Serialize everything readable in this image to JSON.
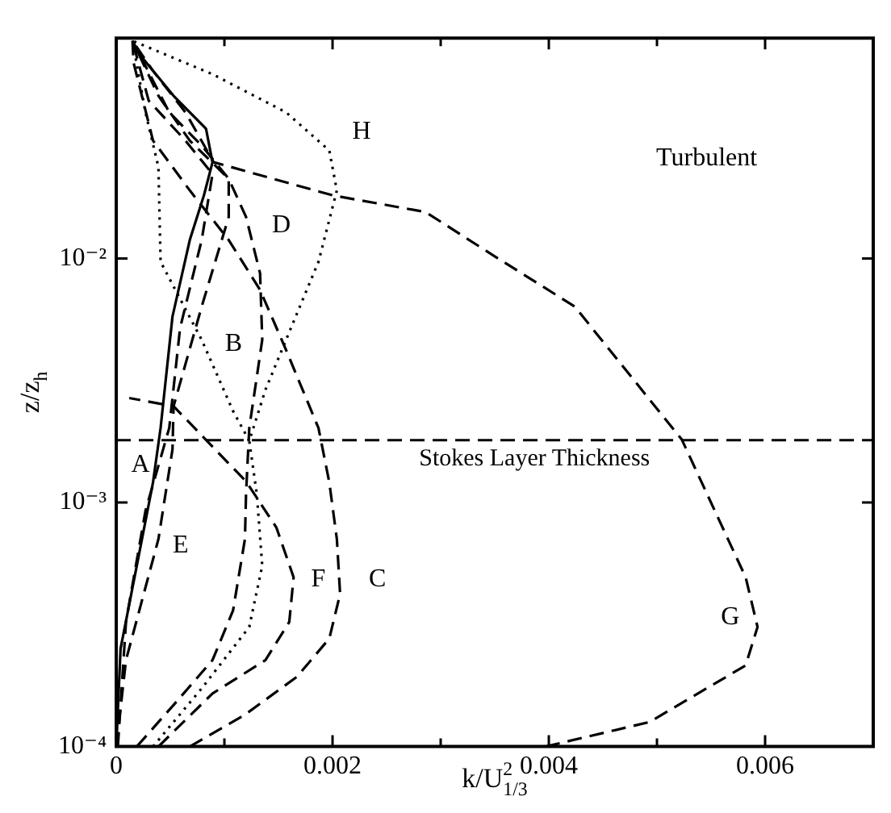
{
  "chart_data": {
    "type": "line",
    "xlabel": "k/U$_{1/3}$$^{2}$",
    "ylabel": "z/z$_{h}$",
    "xlim": [
      0,
      0.007
    ],
    "ylim": [
      0.0001,
      0.08
    ],
    "log": "y",
    "grid": false,
    "legend": false,
    "marker": "none",
    "xticks": [
      0,
      {
        "value": 0.001,
        "label": null
      },
      0.002,
      {
        "value": 0.003,
        "label": null
      },
      0.004,
      {
        "value": 0.005,
        "label": null
      },
      0.006,
      {
        "value": 0.007,
        "label": null
      }
    ],
    "yticks": [
      {
        "value": 0.0001,
        "label": "10⁻⁴"
      },
      {
        "value": 0.001,
        "label": "10⁻³"
      },
      {
        "value": 0.01,
        "label": "10⁻²"
      }
    ],
    "series": [
      {
        "color": "#000000",
        "line_style": "solid",
        "x": [
          0,
          4e-05,
          0.00019,
          0.00034,
          0.00041,
          0.00052,
          0.00068,
          0.00081,
          0.00089,
          0.00083,
          0.00053,
          0.00019,
          0.00015
        ],
        "values": [
          0.0001,
          0.000252,
          0.000551,
          0.00121,
          0.00202,
          0.00578,
          0.0119,
          0.0181,
          0.0248,
          0.034,
          0.0464,
          0.0708,
          0.078
        ]
      },
      {
        "color": "#000000",
        "line_style": "dashed",
        "x": [
          1.5e-05,
          9e-05,
          0.00027,
          0.00049,
          0.00059,
          0.00079,
          0.00089,
          0.00064,
          0.0003,
          0.00015
        ],
        "values": [
          0.0001,
          0.000324,
          0.000924,
          0.00202,
          0.00518,
          0.0119,
          0.0222,
          0.0304,
          0.0443,
          0.078
        ]
      },
      {
        "color": "#000000",
        "line_style": "dashed",
        "x": [
          0.00068,
          0.00119,
          0.00167,
          0.00197,
          0.00207,
          0.00204,
          0.00197,
          0.00187,
          0.00157,
          0.00133,
          0.00104,
          0.00068,
          0.00034,
          0.00016,
          0.00015
        ],
        "values": [
          0.0001,
          0.000135,
          0.000193,
          0.000277,
          0.000422,
          0.000708,
          0.00121,
          0.00202,
          0.00422,
          0.00743,
          0.0119,
          0.019,
          0.0304,
          0.0635,
          0.078
        ]
      },
      {
        "color": "#000000",
        "line_style": "dashed",
        "x": [
          0.00019,
          0.00053,
          0.00089,
          0.00108,
          0.00119,
          0.0012,
          0.00123,
          0.00135,
          0.00133,
          0.0012,
          0.00104,
          0.00079,
          0.00049,
          0.00015
        ],
        "values": [
          0.0001,
          0.000148,
          0.000226,
          0.000361,
          0.000708,
          0.00108,
          0.00202,
          0.00464,
          0.00869,
          0.0148,
          0.0212,
          0.029,
          0.0397,
          0.078
        ]
      },
      {
        "color": "#000000",
        "line_style": "dashed",
        "x": [
          0,
          9e-05,
          0.00039,
          0.00052,
          0.00053,
          0.00079,
          0.00104,
          0.00104,
          0.00068,
          0.00039,
          0.00015
        ],
        "values": [
          0.0001,
          0.000226,
          0.000708,
          0.00165,
          0.00248,
          0.00635,
          0.0148,
          0.0212,
          0.0304,
          0.0464,
          0.078
        ]
      },
      {
        "color": "#000000",
        "line_style": "dashed",
        "x": [
          0.00039,
          0.00089,
          0.00138,
          0.0016,
          0.00164,
          0.00148,
          0.0012,
          0.00053,
          0.00012
        ],
        "values": [
          0.0001,
          0.000165,
          0.000226,
          0.000324,
          0.000494,
          0.000791,
          0.00122,
          0.00248,
          0.00268
        ]
      },
      {
        "color": "#000000",
        "line_style": "dashed",
        "x": [
          0.00397,
          0.00493,
          0.00582,
          0.00593,
          0.00582,
          0.00523,
          0.00424,
          0.0035,
          0.00286,
          0.00201,
          0.0009,
          0.00064,
          0.00034,
          0.00015
        ],
        "values": [
          0.0001,
          0.000126,
          0.000215,
          0.000309,
          0.000494,
          0.00181,
          0.00635,
          0.0102,
          0.0155,
          0.0181,
          0.0248,
          0.0397,
          0.0587,
          0.078
        ]
      },
      {
        "color": "#000000",
        "line_style": "dotted",
        "x": [
          0.00034,
          0.00079,
          0.00123,
          0.00135,
          0.0013,
          0.00123,
          0.00138,
          0.00157,
          0.00187,
          0.00204,
          0.00197,
          0.00157,
          0.00089,
          0.00015
        ],
        "values": [
          0.0001,
          0.000173,
          0.000309,
          0.000551,
          0.00108,
          0.00179,
          0.0029,
          0.00464,
          0.00969,
          0.019,
          0.0277,
          0.0397,
          0.0569,
          0.078
        ]
      },
      {
        "color": "#000000",
        "line_style": "dotted",
        "x": [
          0.00123,
          0.00108,
          0.00079,
          0.00041,
          0.00039,
          0.00027,
          0.00015
        ],
        "values": [
          0.00179,
          0.00237,
          0.00464,
          0.00969,
          0.0237,
          0.0397,
          0.078
        ]
      }
    ],
    "ref_lines": [
      {
        "axis": "y",
        "value": 0.0018,
        "label": "Stokes Layer Thickness",
        "color": "#000000",
        "line_style": "dashed"
      }
    ],
    "annotations": [
      "Turbulent",
      "A",
      "B",
      "C",
      "D",
      "E",
      "F",
      "G",
      "H"
    ]
  }
}
